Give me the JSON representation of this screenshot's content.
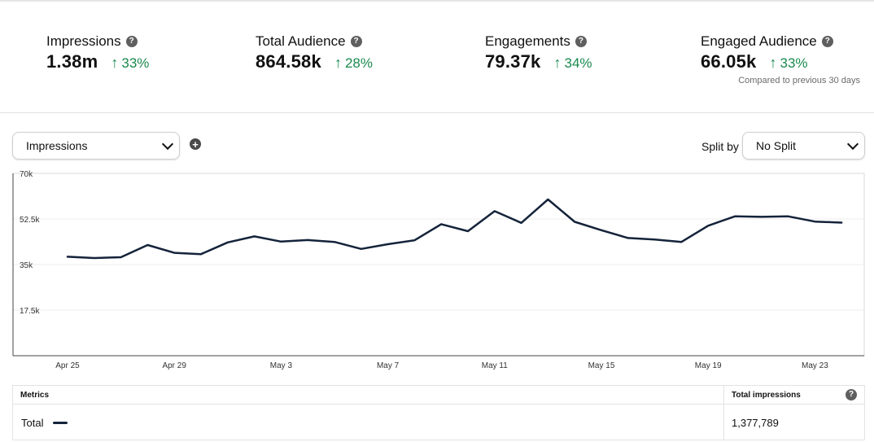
{
  "kpis": [
    {
      "label": "Impressions",
      "value": "1.38m",
      "change": "33%"
    },
    {
      "label": "Total Audience",
      "value": "864.58k",
      "change": "28%"
    },
    {
      "label": "Engagements",
      "value": "79.37k",
      "change": "34%"
    },
    {
      "label": "Engaged Audience",
      "value": "66.05k",
      "change": "33%"
    }
  ],
  "compared_note": "Compared to previous 30 days",
  "controls": {
    "metric_select": "Impressions",
    "split_label": "Split by",
    "split_select": "No Split"
  },
  "colors": {
    "line": "#14233a",
    "positive": "#1a8a4e"
  },
  "chart_data": {
    "type": "line",
    "x": [
      "Apr 25",
      "Apr 26",
      "Apr 27",
      "Apr 28",
      "Apr 29",
      "Apr 30",
      "May 1",
      "May 2",
      "May 3",
      "May 4",
      "May 5",
      "May 6",
      "May 7",
      "May 8",
      "May 9",
      "May 10",
      "May 11",
      "May 12",
      "May 13",
      "May 14",
      "May 15",
      "May 16",
      "May 17",
      "May 18",
      "May 19",
      "May 20",
      "May 21",
      "May 22",
      "May 23",
      "May 24"
    ],
    "xticks": [
      "Apr 25",
      "Apr 29",
      "May 3",
      "May 7",
      "May 11",
      "May 15",
      "May 19",
      "May 23"
    ],
    "yticks": [
      "70k",
      "52.5k",
      "35k",
      "17.5k"
    ],
    "ylim": [
      0,
      70000
    ],
    "grid": true,
    "series": [
      {
        "values": [
          38000,
          37500,
          37800,
          42500,
          39500,
          39000,
          43500,
          45800,
          43800,
          44400,
          43700,
          41000,
          42800,
          44300,
          50500,
          47800,
          55500,
          51000,
          60000,
          51400,
          48200,
          45200,
          44600,
          43700,
          49900,
          53500,
          53300,
          53500,
          51500,
          51100
        ]
      }
    ]
  },
  "metrics_table": {
    "col_metrics": "Metrics",
    "col_total": "Total impressions",
    "row_label": "Total",
    "row_value": "1,377,789"
  }
}
